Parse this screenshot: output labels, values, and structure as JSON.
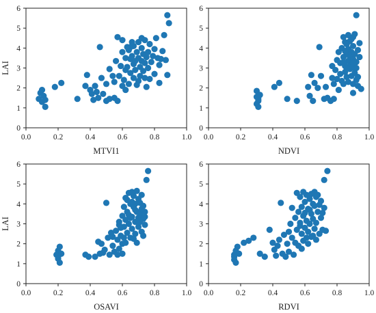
{
  "figure": {
    "marker_color": "#1f77b4",
    "axis_color": "#222222"
  },
  "chart_data": [
    {
      "type": "scatter",
      "xlabel": "MTVI1",
      "ylabel": "LAI",
      "xlim": [
        0.0,
        1.0
      ],
      "ylim": [
        0,
        6
      ],
      "xticks": [
        "0.0",
        "0.2",
        "0.4",
        "0.6",
        "0.8",
        "1.0"
      ],
      "yticks": [
        "0",
        "1",
        "2",
        "3",
        "4",
        "5",
        "6"
      ],
      "points": [
        [
          0.08,
          1.45
        ],
        [
          0.09,
          1.75
        ],
        [
          0.1,
          1.9
        ],
        [
          0.11,
          1.6
        ],
        [
          0.1,
          1.3
        ],
        [
          0.12,
          1.05
        ],
        [
          0.12,
          1.4
        ],
        [
          0.18,
          2.05
        ],
        [
          0.22,
          2.25
        ],
        [
          0.32,
          1.45
        ],
        [
          0.37,
          2.1
        ],
        [
          0.38,
          2.65
        ],
        [
          0.4,
          1.9
        ],
        [
          0.41,
          1.7
        ],
        [
          0.42,
          1.4
        ],
        [
          0.43,
          2.1
        ],
        [
          0.44,
          1.8
        ],
        [
          0.45,
          1.5
        ],
        [
          0.46,
          4.05
        ],
        [
          0.47,
          2.5
        ],
        [
          0.48,
          1.7
        ],
        [
          0.5,
          2.2
        ],
        [
          0.5,
          1.35
        ],
        [
          0.52,
          1.45
        ],
        [
          0.52,
          2.95
        ],
        [
          0.54,
          2.6
        ],
        [
          0.55,
          1.5
        ],
        [
          0.55,
          2.3
        ],
        [
          0.56,
          3.35
        ],
        [
          0.57,
          1.35
        ],
        [
          0.57,
          4.55
        ],
        [
          0.58,
          2.6
        ],
        [
          0.59,
          3.1
        ],
        [
          0.6,
          2.1
        ],
        [
          0.6,
          4.4
        ],
        [
          0.6,
          3.8
        ],
        [
          0.61,
          2.4
        ],
        [
          0.62,
          1.9
        ],
        [
          0.62,
          3.5
        ],
        [
          0.62,
          2.9
        ],
        [
          0.63,
          3.05
        ],
        [
          0.64,
          3.9
        ],
        [
          0.64,
          2.2
        ],
        [
          0.65,
          4.05
        ],
        [
          0.65,
          2.75
        ],
        [
          0.65,
          3.45
        ],
        [
          0.66,
          3.6
        ],
        [
          0.67,
          2.5
        ],
        [
          0.67,
          4.1
        ],
        [
          0.67,
          3.2
        ],
        [
          0.68,
          2.9
        ],
        [
          0.69,
          3.8
        ],
        [
          0.69,
          2.15
        ],
        [
          0.7,
          3.5
        ],
        [
          0.7,
          4.3
        ],
        [
          0.71,
          3.05
        ],
        [
          0.71,
          2.6
        ],
        [
          0.72,
          3.35
        ],
        [
          0.72,
          4.0
        ],
        [
          0.73,
          3.7
        ],
        [
          0.73,
          2.85
        ],
        [
          0.74,
          3.25
        ],
        [
          0.74,
          4.4
        ],
        [
          0.75,
          3.55
        ],
        [
          0.75,
          2.05
        ],
        [
          0.76,
          3.0
        ],
        [
          0.76,
          3.8
        ],
        [
          0.77,
          4.2
        ],
        [
          0.77,
          2.45
        ],
        [
          0.78,
          3.3
        ],
        [
          0.79,
          3.6
        ],
        [
          0.8,
          3.95
        ],
        [
          0.8,
          2.7
        ],
        [
          0.81,
          4.5
        ],
        [
          0.82,
          3.5
        ],
        [
          0.83,
          3.15
        ],
        [
          0.83,
          2.25
        ],
        [
          0.84,
          3.45
        ],
        [
          0.85,
          3.85
        ],
        [
          0.86,
          4.65
        ],
        [
          0.87,
          3.4
        ],
        [
          0.88,
          5.65
        ],
        [
          0.89,
          5.25
        ],
        [
          0.88,
          2.65
        ],
        [
          0.72,
          4.5
        ],
        [
          0.68,
          3.35
        ],
        [
          0.63,
          4.05
        ],
        [
          0.7,
          2.35
        ],
        [
          0.66,
          4.3
        ],
        [
          0.74,
          2.5
        ]
      ]
    },
    {
      "type": "scatter",
      "xlabel": "NDVI",
      "ylabel": "",
      "xlim": [
        0.0,
        1.0
      ],
      "ylim": [
        0,
        6
      ],
      "xticks": [
        "0.0",
        "0.2",
        "0.4",
        "0.6",
        "0.8",
        "1.0"
      ],
      "yticks": [
        "0",
        "1",
        "2",
        "3",
        "4",
        "5",
        "6"
      ],
      "points": [
        [
          0.3,
          1.85
        ],
        [
          0.3,
          1.55
        ],
        [
          0.31,
          1.35
        ],
        [
          0.3,
          1.2
        ],
        [
          0.31,
          1.05
        ],
        [
          0.32,
          1.65
        ],
        [
          0.31,
          1.45
        ],
        [
          0.41,
          2.05
        ],
        [
          0.44,
          2.25
        ],
        [
          0.49,
          1.45
        ],
        [
          0.55,
          1.35
        ],
        [
          0.62,
          2.05
        ],
        [
          0.63,
          1.6
        ],
        [
          0.64,
          2.65
        ],
        [
          0.65,
          1.35
        ],
        [
          0.66,
          2.25
        ],
        [
          0.68,
          2.0
        ],
        [
          0.69,
          4.05
        ],
        [
          0.7,
          2.6
        ],
        [
          0.72,
          1.45
        ],
        [
          0.73,
          2.05
        ],
        [
          0.74,
          1.5
        ],
        [
          0.76,
          1.35
        ],
        [
          0.77,
          2.5
        ],
        [
          0.77,
          3.1
        ],
        [
          0.78,
          2.2
        ],
        [
          0.78,
          1.45
        ],
        [
          0.79,
          2.9
        ],
        [
          0.8,
          3.4
        ],
        [
          0.8,
          2.45
        ],
        [
          0.81,
          3.8
        ],
        [
          0.81,
          1.9
        ],
        [
          0.82,
          2.7
        ],
        [
          0.82,
          3.25
        ],
        [
          0.83,
          4.0
        ],
        [
          0.83,
          2.35
        ],
        [
          0.84,
          3.55
        ],
        [
          0.84,
          4.55
        ],
        [
          0.85,
          3.1
        ],
        [
          0.85,
          2.8
        ],
        [
          0.86,
          3.7
        ],
        [
          0.86,
          4.2
        ],
        [
          0.86,
          2.55
        ],
        [
          0.87,
          3.35
        ],
        [
          0.87,
          3.95
        ],
        [
          0.88,
          2.95
        ],
        [
          0.88,
          4.35
        ],
        [
          0.88,
          3.55
        ],
        [
          0.89,
          3.15
        ],
        [
          0.89,
          3.8
        ],
        [
          0.89,
          2.6
        ],
        [
          0.9,
          4.1
        ],
        [
          0.9,
          3.45
        ],
        [
          0.9,
          2.2
        ],
        [
          0.9,
          4.55
        ],
        [
          0.91,
          3.0
        ],
        [
          0.91,
          3.7
        ],
        [
          0.91,
          4.7
        ],
        [
          0.92,
          2.4
        ],
        [
          0.92,
          3.3
        ],
        [
          0.92,
          5.65
        ],
        [
          0.93,
          3.9
        ],
        [
          0.93,
          2.1
        ],
        [
          0.94,
          3.55
        ],
        [
          0.94,
          4.25
        ],
        [
          0.95,
          1.95
        ],
        [
          0.87,
          4.65
        ],
        [
          0.85,
          4.3
        ],
        [
          0.84,
          3.3
        ],
        [
          0.88,
          3.1
        ],
        [
          0.91,
          2.75
        ],
        [
          0.89,
          4.45
        ],
        [
          0.9,
          3.25
        ],
        [
          0.86,
          3.0
        ],
        [
          0.87,
          2.3
        ],
        [
          0.84,
          2.2
        ],
        [
          0.92,
          3.0
        ],
        [
          0.93,
          2.55
        ],
        [
          0.85,
          3.85
        ],
        [
          0.9,
          1.75
        ]
      ]
    },
    {
      "type": "scatter",
      "xlabel": "OSAVI",
      "ylabel": "LAI",
      "xlim": [
        0.0,
        1.0
      ],
      "ylim": [
        0,
        6
      ],
      "xticks": [
        "0.0",
        "0.2",
        "0.4",
        "0.6",
        "0.8",
        "1.0"
      ],
      "yticks": [
        "0",
        "1",
        "2",
        "3",
        "4",
        "5",
        "6"
      ],
      "points": [
        [
          0.19,
          1.45
        ],
        [
          0.2,
          1.65
        ],
        [
          0.21,
          1.85
        ],
        [
          0.2,
          1.25
        ],
        [
          0.21,
          1.05
        ],
        [
          0.22,
          1.5
        ],
        [
          0.2,
          1.35
        ],
        [
          0.37,
          1.45
        ],
        [
          0.39,
          1.35
        ],
        [
          0.43,
          1.35
        ],
        [
          0.45,
          2.1
        ],
        [
          0.46,
          1.5
        ],
        [
          0.47,
          2.0
        ],
        [
          0.48,
          1.55
        ],
        [
          0.49,
          1.7
        ],
        [
          0.5,
          4.05
        ],
        [
          0.51,
          2.3
        ],
        [
          0.52,
          1.45
        ],
        [
          0.53,
          2.55
        ],
        [
          0.54,
          1.9
        ],
        [
          0.54,
          2.35
        ],
        [
          0.55,
          1.6
        ],
        [
          0.56,
          2.65
        ],
        [
          0.57,
          2.2
        ],
        [
          0.58,
          3.1
        ],
        [
          0.58,
          1.75
        ],
        [
          0.59,
          2.4
        ],
        [
          0.6,
          3.4
        ],
        [
          0.6,
          2.0
        ],
        [
          0.61,
          3.85
        ],
        [
          0.61,
          2.85
        ],
        [
          0.62,
          3.2
        ],
        [
          0.62,
          4.3
        ],
        [
          0.63,
          2.55
        ],
        [
          0.63,
          3.6
        ],
        [
          0.64,
          4.55
        ],
        [
          0.64,
          3.0
        ],
        [
          0.65,
          2.3
        ],
        [
          0.65,
          4.0
        ],
        [
          0.66,
          3.35
        ],
        [
          0.66,
          2.75
        ],
        [
          0.67,
          3.85
        ],
        [
          0.67,
          4.4
        ],
        [
          0.68,
          3.1
        ],
        [
          0.68,
          2.5
        ],
        [
          0.69,
          3.6
        ],
        [
          0.69,
          4.65
        ],
        [
          0.7,
          3.3
        ],
        [
          0.7,
          2.85
        ],
        [
          0.71,
          4.05
        ],
        [
          0.71,
          3.5
        ],
        [
          0.72,
          2.6
        ],
        [
          0.72,
          4.45
        ],
        [
          0.73,
          3.25
        ],
        [
          0.73,
          3.9
        ],
        [
          0.74,
          2.95
        ],
        [
          0.75,
          5.2
        ],
        [
          0.76,
          5.65
        ],
        [
          0.74,
          3.6
        ],
        [
          0.66,
          4.1
        ],
        [
          0.68,
          3.7
        ],
        [
          0.7,
          3.05
        ],
        [
          0.72,
          3.75
        ],
        [
          0.64,
          3.45
        ],
        [
          0.67,
          2.25
        ],
        [
          0.69,
          2.05
        ],
        [
          0.62,
          2.05
        ],
        [
          0.59,
          2.8
        ],
        [
          0.6,
          1.5
        ],
        [
          0.57,
          1.45
        ],
        [
          0.63,
          4.2
        ],
        [
          0.71,
          3.1
        ],
        [
          0.65,
          3.3
        ],
        [
          0.7,
          4.25
        ],
        [
          0.73,
          2.4
        ],
        [
          0.58,
          2.95
        ],
        [
          0.66,
          4.6
        ],
        [
          0.61,
          2.3
        ],
        [
          0.68,
          4.0
        ],
        [
          0.74,
          3.35
        ]
      ]
    },
    {
      "type": "scatter",
      "xlabel": "RDVI",
      "ylabel": "",
      "xlim": [
        0.0,
        1.0
      ],
      "ylim": [
        0,
        6
      ],
      "xticks": [
        "0.0",
        "0.2",
        "0.4",
        "0.6",
        "0.8",
        "1.0"
      ],
      "yticks": [
        "0",
        "1",
        "2",
        "3",
        "4",
        "5",
        "6"
      ],
      "points": [
        [
          0.16,
          1.45
        ],
        [
          0.17,
          1.65
        ],
        [
          0.18,
          1.85
        ],
        [
          0.16,
          1.2
        ],
        [
          0.17,
          1.05
        ],
        [
          0.19,
          1.5
        ],
        [
          0.16,
          1.35
        ],
        [
          0.22,
          2.05
        ],
        [
          0.25,
          2.15
        ],
        [
          0.28,
          2.3
        ],
        [
          0.32,
          1.5
        ],
        [
          0.35,
          1.35
        ],
        [
          0.38,
          2.7
        ],
        [
          0.4,
          2.05
        ],
        [
          0.41,
          1.7
        ],
        [
          0.42,
          1.4
        ],
        [
          0.43,
          1.9
        ],
        [
          0.44,
          2.2
        ],
        [
          0.45,
          4.05
        ],
        [
          0.46,
          1.5
        ],
        [
          0.47,
          2.45
        ],
        [
          0.48,
          1.35
        ],
        [
          0.49,
          2.0
        ],
        [
          0.5,
          2.6
        ],
        [
          0.5,
          1.6
        ],
        [
          0.51,
          3.0
        ],
        [
          0.52,
          2.3
        ],
        [
          0.53,
          1.45
        ],
        [
          0.54,
          3.3
        ],
        [
          0.54,
          2.05
        ],
        [
          0.55,
          4.55
        ],
        [
          0.55,
          2.7
        ],
        [
          0.56,
          3.6
        ],
        [
          0.56,
          1.9
        ],
        [
          0.57,
          3.05
        ],
        [
          0.57,
          4.35
        ],
        [
          0.58,
          2.5
        ],
        [
          0.58,
          3.85
        ],
        [
          0.59,
          2.15
        ],
        [
          0.59,
          3.4
        ],
        [
          0.6,
          4.1
        ],
        [
          0.6,
          2.8
        ],
        [
          0.61,
          3.15
        ],
        [
          0.61,
          4.45
        ],
        [
          0.62,
          2.6
        ],
        [
          0.62,
          3.75
        ],
        [
          0.63,
          4.25
        ],
        [
          0.63,
          3.0
        ],
        [
          0.64,
          3.5
        ],
        [
          0.64,
          2.35
        ],
        [
          0.65,
          4.0
        ],
        [
          0.65,
          3.25
        ],
        [
          0.66,
          2.75
        ],
        [
          0.66,
          3.9
        ],
        [
          0.67,
          4.35
        ],
        [
          0.67,
          3.05
        ],
        [
          0.68,
          3.6
        ],
        [
          0.69,
          2.5
        ],
        [
          0.7,
          3.3
        ],
        [
          0.7,
          4.15
        ],
        [
          0.71,
          2.7
        ],
        [
          0.72,
          5.2
        ],
        [
          0.72,
          3.8
        ],
        [
          0.73,
          2.65
        ],
        [
          0.74,
          5.65
        ],
        [
          0.68,
          4.45
        ],
        [
          0.63,
          3.7
        ],
        [
          0.66,
          4.6
        ],
        [
          0.6,
          3.55
        ],
        [
          0.62,
          2.0
        ],
        [
          0.58,
          1.75
        ],
        [
          0.61,
          2.3
        ],
        [
          0.65,
          2.4
        ],
        [
          0.69,
          3.95
        ],
        [
          0.64,
          4.5
        ],
        [
          0.67,
          2.2
        ],
        [
          0.71,
          3.55
        ],
        [
          0.57,
          2.9
        ],
        [
          0.59,
          4.6
        ],
        [
          0.52,
          3.8
        ]
      ]
    }
  ]
}
